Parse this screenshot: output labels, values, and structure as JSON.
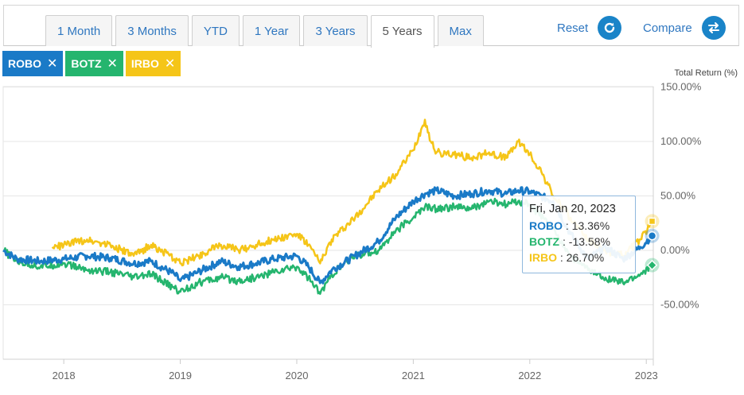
{
  "toolbar": {
    "tabs": [
      {
        "label": "1 Month",
        "active": false
      },
      {
        "label": "3 Months",
        "active": false
      },
      {
        "label": "YTD",
        "active": false
      },
      {
        "label": "1 Year",
        "active": false
      },
      {
        "label": "3 Years",
        "active": false
      },
      {
        "label": "5 Years",
        "active": true
      },
      {
        "label": "Max",
        "active": false
      }
    ],
    "reset_label": "Reset",
    "compare_label": "Compare"
  },
  "chips": [
    {
      "label": "ROBO",
      "close": "✕",
      "color": "#1a7ac7"
    },
    {
      "label": "BOTZ",
      "close": "✕",
      "color": "#25b56e"
    },
    {
      "label": "IRBO",
      "close": "✕",
      "color": "#f5c518"
    }
  ],
  "tooltip": {
    "date": "Fri, Jan 20, 2023",
    "rows": [
      {
        "name": "ROBO",
        "value": ": 13.36%",
        "color": "#1a7ac7"
      },
      {
        "name": "BOTZ",
        "value": ": -13.58%",
        "color": "#25b56e"
      },
      {
        "name": "IRBO",
        "value": ": 26.70%",
        "color": "#f5c518"
      }
    ]
  },
  "chart_data": {
    "type": "line",
    "ylabel": "Total Return (%)",
    "ylim": [
      -100,
      150
    ],
    "y_ticks": [
      {
        "value": 150,
        "label": "150.00%"
      },
      {
        "value": 100,
        "label": "100.00%"
      },
      {
        "value": 50,
        "label": "50.00%"
      },
      {
        "value": 0,
        "label": "0.00%"
      },
      {
        "value": -50,
        "label": "-50.00%"
      }
    ],
    "xlim": [
      2017.48,
      2023.06
    ],
    "x_ticks": [
      {
        "value": 2018.0,
        "label": "2018"
      },
      {
        "value": 2019.0,
        "label": "2019"
      },
      {
        "value": 2020.0,
        "label": "2020"
      },
      {
        "value": 2021.0,
        "label": "2021"
      },
      {
        "value": 2022.0,
        "label": "2022"
      },
      {
        "value": 2023.0,
        "label": "2023"
      }
    ],
    "grid": true,
    "series": [
      {
        "name": "ROBO",
        "color": "#1a7ac7",
        "x": [
          2017.48,
          2017.6,
          2017.8,
          2018.0,
          2018.2,
          2018.4,
          2018.6,
          2018.75,
          2018.95,
          2019.0,
          2019.15,
          2019.35,
          2019.5,
          2019.65,
          2019.8,
          2020.0,
          2020.1,
          2020.2,
          2020.3,
          2020.5,
          2020.7,
          2020.85,
          2021.0,
          2021.1,
          2021.2,
          2021.35,
          2021.5,
          2021.65,
          2021.8,
          2021.9,
          2022.0,
          2022.2,
          2022.35,
          2022.5,
          2022.65,
          2022.8,
          2022.95,
          2023.05
        ],
        "y": [
          0,
          -8,
          -10,
          -8,
          -5,
          -7,
          -12,
          -10,
          -22,
          -28,
          -20,
          -10,
          -15,
          -12,
          -8,
          -5,
          -15,
          -30,
          -18,
          -5,
          8,
          30,
          45,
          52,
          55,
          50,
          52,
          55,
          52,
          55,
          54,
          45,
          15,
          -8,
          3,
          -8,
          3,
          13.36
        ]
      },
      {
        "name": "BOTZ",
        "color": "#25b56e",
        "x": [
          2017.48,
          2017.6,
          2017.8,
          2018.0,
          2018.2,
          2018.4,
          2018.6,
          2018.75,
          2018.95,
          2019.0,
          2019.15,
          2019.35,
          2019.5,
          2019.65,
          2019.8,
          2020.0,
          2020.1,
          2020.2,
          2020.3,
          2020.5,
          2020.7,
          2020.85,
          2021.0,
          2021.1,
          2021.2,
          2021.35,
          2021.5,
          2021.65,
          2021.8,
          2021.9,
          2022.0,
          2022.2,
          2022.35,
          2022.5,
          2022.65,
          2022.8,
          2022.95,
          2023.05
        ],
        "y": [
          0,
          -10,
          -15,
          -12,
          -18,
          -20,
          -25,
          -22,
          -35,
          -38,
          -30,
          -25,
          -28,
          -25,
          -20,
          -15,
          -25,
          -40,
          -22,
          -5,
          0,
          18,
          30,
          40,
          38,
          40,
          38,
          45,
          42,
          45,
          42,
          20,
          -5,
          -18,
          -25,
          -30,
          -22,
          -13.58
        ]
      },
      {
        "name": "IRBO",
        "color": "#f5c518",
        "x": [
          2017.9,
          2018.0,
          2018.2,
          2018.4,
          2018.6,
          2018.75,
          2018.95,
          2019.0,
          2019.15,
          2019.35,
          2019.5,
          2019.65,
          2019.8,
          2020.0,
          2020.1,
          2020.2,
          2020.3,
          2020.5,
          2020.7,
          2020.85,
          2021.0,
          2021.1,
          2021.15,
          2021.2,
          2021.35,
          2021.5,
          2021.65,
          2021.8,
          2021.9,
          2022.0,
          2022.1,
          2022.2,
          2022.35,
          2022.5,
          2022.65,
          2022.8,
          2022.95,
          2023.05
        ],
        "y": [
          2,
          5,
          10,
          5,
          -5,
          5,
          -8,
          -12,
          -5,
          5,
          0,
          5,
          10,
          15,
          5,
          -12,
          10,
          30,
          55,
          70,
          92,
          120,
          100,
          90,
          88,
          85,
          90,
          85,
          100,
          88,
          72,
          50,
          30,
          10,
          0,
          -5,
          10,
          26.7
        ]
      }
    ]
  }
}
